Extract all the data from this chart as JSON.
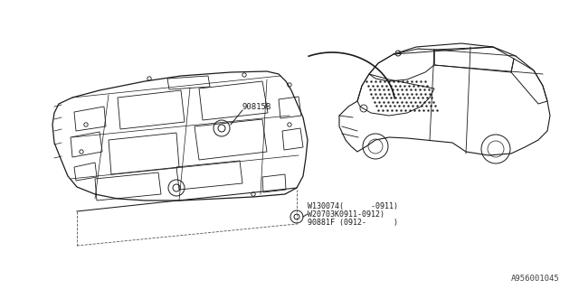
{
  "bg_color": "#ffffff",
  "line_color": "#1a1a1a",
  "part_label_1": "90815B",
  "part_label_2_line1": "W130074(      -0911)",
  "part_label_2_line2": "W20703K0911-0912)",
  "part_label_2_line3": "90881F (0912-      )",
  "watermark": "A956001045",
  "font_size_parts": 6.5,
  "font_size_watermark": 6.5
}
